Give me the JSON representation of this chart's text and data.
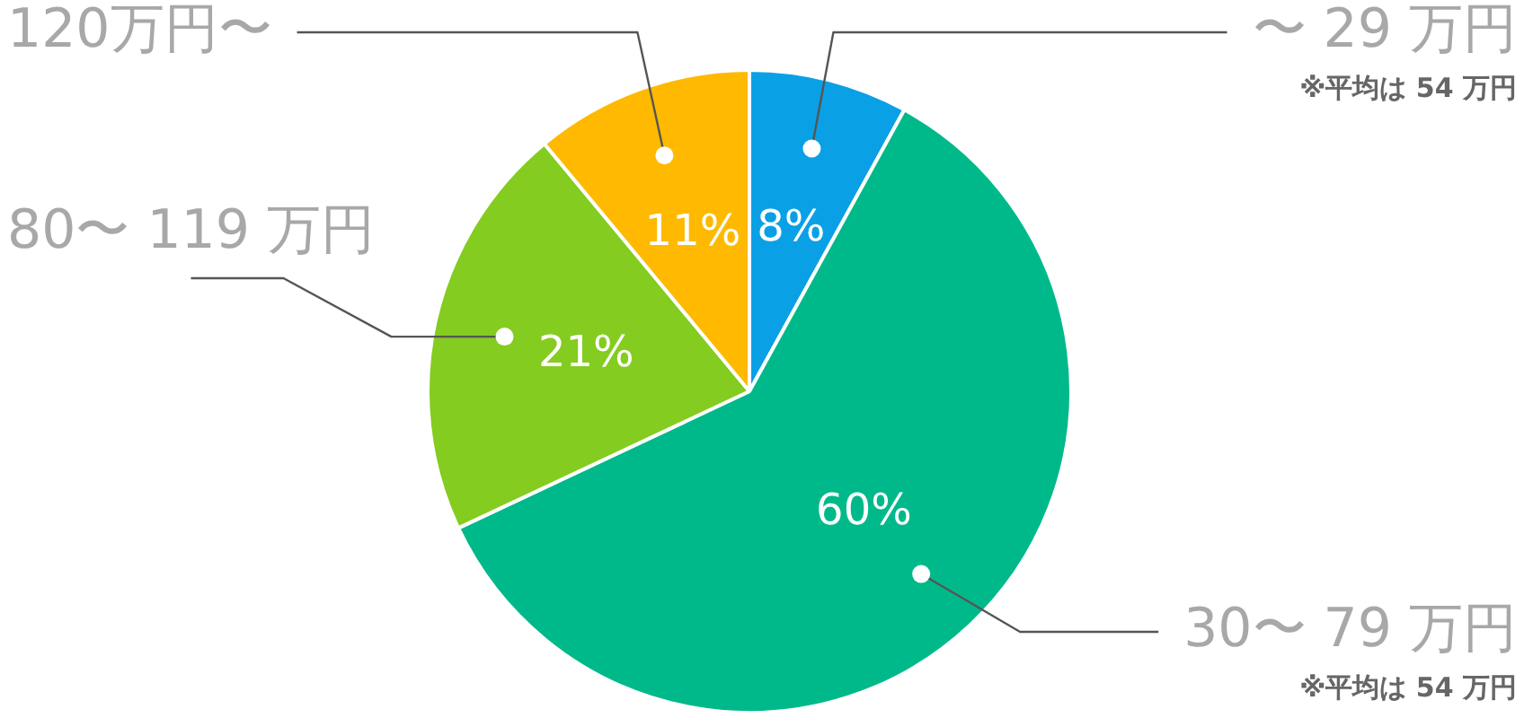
{
  "chart_data": {
    "type": "pie",
    "categories": [
      "〜 29 万円",
      "30〜 79 万円",
      "80〜 119 万円",
      "120万円〜"
    ],
    "values": [
      8,
      60,
      21,
      11
    ],
    "colors": [
      "#0aa0e6",
      "#00b98a",
      "#84cc1f",
      "#ffb900"
    ],
    "value_labels": [
      "8%",
      "60%",
      "21%",
      "11%"
    ],
    "annotations": [
      "※平均は 54 万円",
      "※平均は 54 万円"
    ],
    "legend": false
  }
}
